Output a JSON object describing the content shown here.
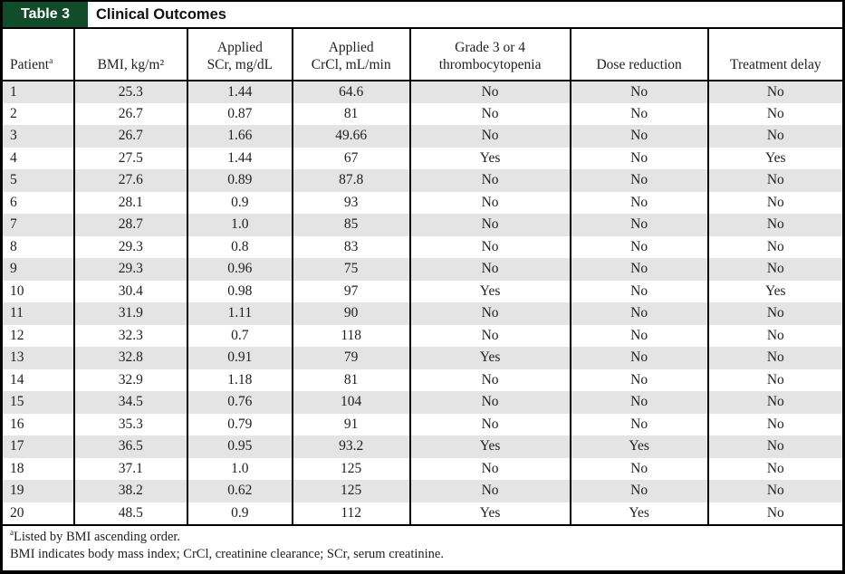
{
  "header": {
    "label": "Table 3",
    "title": "Clinical Outcomes"
  },
  "table": {
    "columns": [
      {
        "id": "patient",
        "lines": [
          "Patient"
        ],
        "sup": "a"
      },
      {
        "id": "bmi",
        "lines": [
          "BMI, kg/m²"
        ]
      },
      {
        "id": "scr",
        "lines": [
          "Applied",
          "SCr, mg/dL"
        ]
      },
      {
        "id": "crcl",
        "lines": [
          "Applied",
          "CrCl, mL/min"
        ]
      },
      {
        "id": "thrombocytopenia",
        "lines": [
          "Grade 3 or 4",
          "thrombocytopenia"
        ]
      },
      {
        "id": "dose_reduction",
        "lines": [
          "Dose reduction"
        ]
      },
      {
        "id": "treatment_delay",
        "lines": [
          "Treatment delay"
        ]
      }
    ],
    "rows": [
      {
        "patient": "1",
        "bmi": "25.3",
        "scr": "1.44",
        "crcl": "64.6",
        "thrombocytopenia": "No",
        "dose_reduction": "No",
        "treatment_delay": "No"
      },
      {
        "patient": "2",
        "bmi": "26.7",
        "scr": "0.87",
        "crcl": "81",
        "thrombocytopenia": "No",
        "dose_reduction": "No",
        "treatment_delay": "No"
      },
      {
        "patient": "3",
        "bmi": "26.7",
        "scr": "1.66",
        "crcl": "49.66",
        "thrombocytopenia": "No",
        "dose_reduction": "No",
        "treatment_delay": "No"
      },
      {
        "patient": "4",
        "bmi": "27.5",
        "scr": "1.44",
        "crcl": "67",
        "thrombocytopenia": "Yes",
        "dose_reduction": "No",
        "treatment_delay": "Yes"
      },
      {
        "patient": "5",
        "bmi": "27.6",
        "scr": "0.89",
        "crcl": "87.8",
        "thrombocytopenia": "No",
        "dose_reduction": "No",
        "treatment_delay": "No"
      },
      {
        "patient": "6",
        "bmi": "28.1",
        "scr": "0.9",
        "crcl": "93",
        "thrombocytopenia": "No",
        "dose_reduction": "No",
        "treatment_delay": "No"
      },
      {
        "patient": "7",
        "bmi": "28.7",
        "scr": "1.0",
        "crcl": "85",
        "thrombocytopenia": "No",
        "dose_reduction": "No",
        "treatment_delay": "No"
      },
      {
        "patient": "8",
        "bmi": "29.3",
        "scr": "0.8",
        "crcl": "83",
        "thrombocytopenia": "No",
        "dose_reduction": "No",
        "treatment_delay": "No"
      },
      {
        "patient": "9",
        "bmi": "29.3",
        "scr": "0.96",
        "crcl": "75",
        "thrombocytopenia": "No",
        "dose_reduction": "No",
        "treatment_delay": "No"
      },
      {
        "patient": "10",
        "bmi": "30.4",
        "scr": "0.98",
        "crcl": "97",
        "thrombocytopenia": "Yes",
        "dose_reduction": "No",
        "treatment_delay": "Yes"
      },
      {
        "patient": "11",
        "bmi": "31.9",
        "scr": "1.11",
        "crcl": "90",
        "thrombocytopenia": "No",
        "dose_reduction": "No",
        "treatment_delay": "No"
      },
      {
        "patient": "12",
        "bmi": "32.3",
        "scr": "0.7",
        "crcl": "118",
        "thrombocytopenia": "No",
        "dose_reduction": "No",
        "treatment_delay": "No"
      },
      {
        "patient": "13",
        "bmi": "32.8",
        "scr": "0.91",
        "crcl": "79",
        "thrombocytopenia": "Yes",
        "dose_reduction": "No",
        "treatment_delay": "No"
      },
      {
        "patient": "14",
        "bmi": "32.9",
        "scr": "1.18",
        "crcl": "81",
        "thrombocytopenia": "No",
        "dose_reduction": "No",
        "treatment_delay": "No"
      },
      {
        "patient": "15",
        "bmi": "34.5",
        "scr": "0.76",
        "crcl": "104",
        "thrombocytopenia": "No",
        "dose_reduction": "No",
        "treatment_delay": "No"
      },
      {
        "patient": "16",
        "bmi": "35.3",
        "scr": "0.79",
        "crcl": "91",
        "thrombocytopenia": "No",
        "dose_reduction": "No",
        "treatment_delay": "No"
      },
      {
        "patient": "17",
        "bmi": "36.5",
        "scr": "0.95",
        "crcl": "93.2",
        "thrombocytopenia": "Yes",
        "dose_reduction": "Yes",
        "treatment_delay": "No"
      },
      {
        "patient": "18",
        "bmi": "37.1",
        "scr": "1.0",
        "crcl": "125",
        "thrombocytopenia": "No",
        "dose_reduction": "No",
        "treatment_delay": "No"
      },
      {
        "patient": "19",
        "bmi": "38.2",
        "scr": "0.62",
        "crcl": "125",
        "thrombocytopenia": "No",
        "dose_reduction": "No",
        "treatment_delay": "No"
      },
      {
        "patient": "20",
        "bmi": "48.5",
        "scr": "0.9",
        "crcl": "112",
        "thrombocytopenia": "Yes",
        "dose_reduction": "Yes",
        "treatment_delay": "No"
      }
    ]
  },
  "footnotes": {
    "listed_by": {
      "sup": "a",
      "text": "Listed by BMI ascending order."
    },
    "abbreviations": "BMI indicates body mass index; CrCl, creatinine clearance; SCr, serum creatinine."
  },
  "colors": {
    "label_box_green": "#124d2b",
    "row_stripe_gray": "#e4e4e4"
  }
}
